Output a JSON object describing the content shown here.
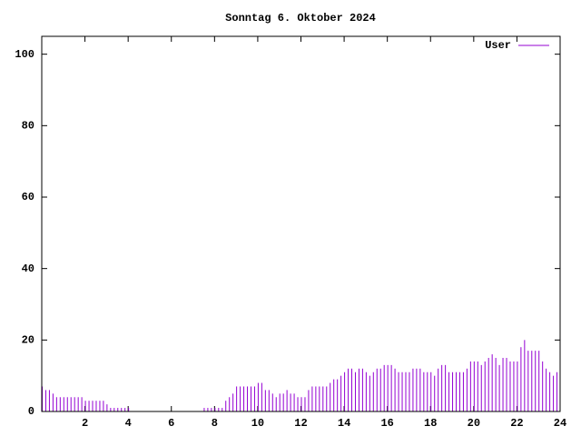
{
  "chart_data": {
    "type": "impulse",
    "title": "Sonntag 6. Oktober 2024",
    "x": [
      0,
      0.167,
      0.333,
      0.5,
      0.667,
      0.833,
      1,
      1.167,
      1.333,
      1.5,
      1.667,
      1.833,
      2,
      2.167,
      2.333,
      2.5,
      2.667,
      2.833,
      3,
      3.167,
      3.333,
      3.5,
      3.667,
      3.833,
      4,
      4.167,
      4.333,
      4.5,
      4.667,
      4.833,
      5,
      5.167,
      5.333,
      5.5,
      5.667,
      5.833,
      6,
      6.167,
      6.333,
      6.5,
      6.667,
      6.833,
      7,
      7.167,
      7.333,
      7.5,
      7.667,
      7.833,
      8,
      8.167,
      8.333,
      8.5,
      8.667,
      8.833,
      9,
      9.167,
      9.333,
      9.5,
      9.667,
      9.833,
      10,
      10.167,
      10.333,
      10.5,
      10.667,
      10.833,
      11,
      11.167,
      11.333,
      11.5,
      11.667,
      11.833,
      12,
      12.167,
      12.333,
      12.5,
      12.667,
      12.833,
      13,
      13.167,
      13.333,
      13.5,
      13.667,
      13.833,
      14,
      14.167,
      14.333,
      14.5,
      14.667,
      14.833,
      15,
      15.167,
      15.333,
      15.5,
      15.667,
      15.833,
      16,
      16.167,
      16.333,
      16.5,
      16.667,
      16.833,
      17,
      17.167,
      17.333,
      17.5,
      17.667,
      17.833,
      18,
      18.167,
      18.333,
      18.5,
      18.667,
      18.833,
      19,
      19.167,
      19.333,
      19.5,
      19.667,
      19.833,
      20,
      20.167,
      20.333,
      20.5,
      20.667,
      20.833,
      21,
      21.167,
      21.333,
      21.5,
      21.667,
      21.833,
      22,
      22.167,
      22.333,
      22.5,
      22.667,
      22.833,
      23,
      23.167,
      23.333,
      23.5,
      23.667,
      23.833
    ],
    "series": [
      {
        "name": "User",
        "color": "#9400d3",
        "values": [
          7,
          6,
          6,
          5,
          4,
          4,
          4,
          4,
          4,
          4,
          4,
          4,
          3,
          3,
          3,
          3,
          3,
          3,
          2,
          1,
          1,
          1,
          1,
          1,
          1,
          0,
          0,
          0,
          0,
          0,
          0,
          0,
          0,
          0,
          0,
          0,
          0,
          0,
          0,
          0,
          0,
          0,
          0,
          0,
          0,
          1,
          1,
          1,
          1,
          1,
          1,
          3,
          4,
          5,
          7,
          7,
          7,
          7,
          7,
          7,
          8,
          8,
          6,
          6,
          5,
          4,
          5,
          5,
          6,
          5,
          5,
          4,
          4,
          4,
          6,
          7,
          7,
          7,
          7,
          7,
          8,
          9,
          9,
          10,
          11,
          12,
          12,
          11,
          12,
          12,
          11,
          10,
          11,
          12,
          12,
          13,
          13,
          13,
          12,
          11,
          11,
          11,
          11,
          12,
          12,
          12,
          11,
          11,
          11,
          10,
          12,
          13,
          13,
          11,
          11,
          11,
          11,
          11,
          12,
          14,
          14,
          14,
          13,
          14,
          15,
          16,
          15,
          13,
          15,
          15,
          14,
          14,
          14,
          18,
          20,
          17,
          17,
          17,
          17,
          14,
          12,
          11,
          10,
          11
        ]
      }
    ],
    "xlim": [
      0,
      24
    ],
    "xticks": [
      2,
      4,
      6,
      8,
      10,
      12,
      14,
      16,
      18,
      20,
      22,
      24
    ],
    "ylim": [
      0,
      105
    ],
    "yticks": [
      0,
      20,
      40,
      60,
      80,
      100
    ],
    "legend": "upper right"
  }
}
